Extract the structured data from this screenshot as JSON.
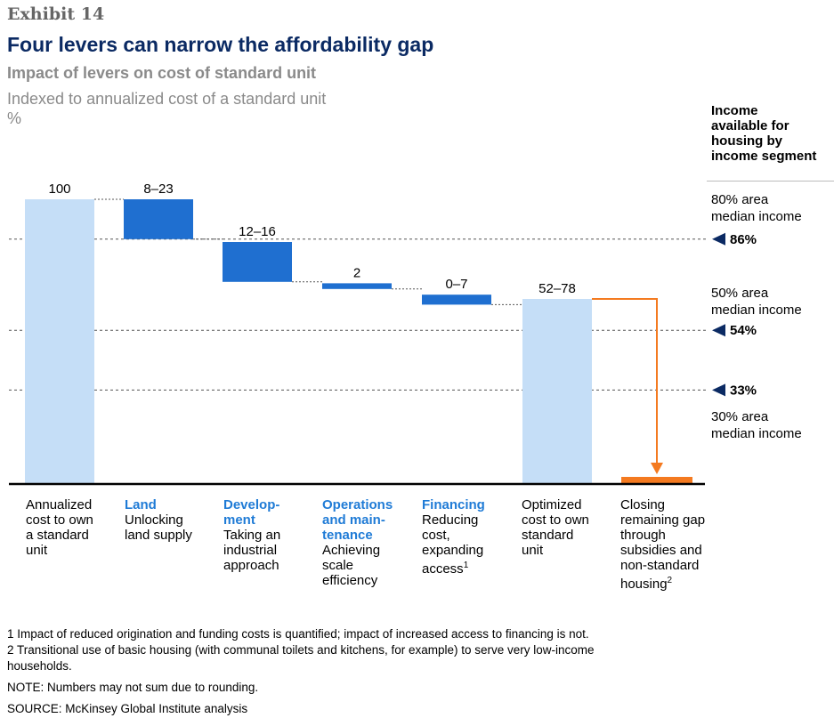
{
  "exhibit": "Exhibit 14",
  "title": "Four levers can narrow the affordability gap",
  "subtitle": "Impact of levers on cost of standard unit",
  "subtitle2": "Indexed to annualized cost of a standard unit",
  "unit": "%",
  "income_header": [
    "Income",
    "available for",
    "housing by",
    "income segment"
  ],
  "income_segments": [
    {
      "label_lines": [
        "80% area",
        "median income"
      ],
      "marker": "86%"
    },
    {
      "label_lines": [
        "50% area",
        "median income"
      ],
      "marker": "54%"
    },
    {
      "label_lines": [
        "30% area",
        "median income"
      ],
      "marker": "33%"
    }
  ],
  "categories": [
    {
      "head": [],
      "lines": [
        "Annualized",
        "cost to own",
        "a standard",
        "unit"
      ]
    },
    {
      "head": [
        "Land"
      ],
      "lines": [
        "Unlocking",
        "land supply"
      ]
    },
    {
      "head": [
        "Develop-",
        "ment"
      ],
      "lines": [
        "Taking an",
        "industrial",
        "approach"
      ]
    },
    {
      "head": [
        "Operations",
        "and main-",
        "tenance"
      ],
      "lines": [
        "Achieving",
        "scale",
        "efficiency"
      ]
    },
    {
      "head": [
        "Financing"
      ],
      "lines": [
        "Reducing",
        "cost,",
        "expanding",
        "access"
      ],
      "sup": "1"
    },
    {
      "head": [],
      "lines": [
        "Optimized",
        "cost to own",
        "standard",
        "unit"
      ]
    },
    {
      "head": [],
      "lines": [
        "Closing",
        "remaining gap",
        "through",
        "subsidies and",
        "non-standard",
        "housing"
      ],
      "sup": "2"
    }
  ],
  "footnotes": [
    "1  Impact of reduced origination and funding costs is quantified; impact of increased access to financing is not.",
    "2  Transitional use of basic housing (with communal toilets and kitchens, for example) to serve very low-income",
    "    households.",
    "NOTE: Numbers may not sum due to rounding.",
    "SOURCE: McKinsey Global Institute analysis"
  ],
  "colors": {
    "title": "#0b2a63",
    "light_bar": "#c5def7",
    "dark_bar": "#1f6fd0",
    "orange": "#f47a20",
    "marker": "#0b2a63"
  },
  "chart_data": {
    "type": "waterfall",
    "ylim": [
      0,
      100
    ],
    "bars": [
      {
        "label": "100",
        "kind": "total",
        "bottom": 0,
        "top": 100
      },
      {
        "label": "8–23",
        "kind": "decrease",
        "bottom": 86,
        "top": 100
      },
      {
        "label": "12–16",
        "kind": "decrease",
        "bottom": 71,
        "top": 85
      },
      {
        "label": "2",
        "kind": "decrease",
        "bottom": 68.5,
        "top": 70.5
      },
      {
        "label": "0–7",
        "kind": "decrease",
        "bottom": 63,
        "top": 66.5
      },
      {
        "label": "52–78",
        "kind": "total",
        "bottom": 0,
        "top": 65
      },
      {
        "label": "",
        "kind": "gap",
        "bottom": 0,
        "top": 2.5
      }
    ],
    "reference_lines": [
      {
        "label": "86%",
        "value": 86
      },
      {
        "label": "54%",
        "value": 54
      },
      {
        "label": "33%",
        "value": 33
      }
    ]
  }
}
